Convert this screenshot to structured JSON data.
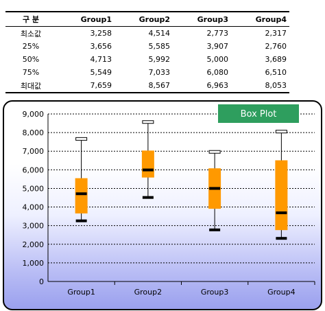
{
  "table": {
    "header": [
      "구 분",
      "Group1",
      "Group2",
      "Group3",
      "Group4"
    ],
    "rows": [
      {
        "label": "최소값",
        "values": [
          "3,258",
          "4,514",
          "2,773",
          "2,317"
        ]
      },
      {
        "label": "25%",
        "values": [
          "3,656",
          "5,585",
          "3,907",
          "2,760"
        ]
      },
      {
        "label": "50%",
        "values": [
          "4,713",
          "5,992",
          "5,000",
          "3,689"
        ]
      },
      {
        "label": "75%",
        "values": [
          "5,549",
          "7,033",
          "6,080",
          "6,510"
        ]
      },
      {
        "label": "최대값",
        "values": [
          "7,659",
          "8,567",
          "6,963",
          "8,053"
        ]
      }
    ]
  },
  "chart_data": {
    "type": "box",
    "title": "Box Plot",
    "categories": [
      "Group1",
      "Group2",
      "Group3",
      "Group4"
    ],
    "min": [
      3258,
      4514,
      2773,
      2317
    ],
    "q1": [
      3656,
      5585,
      3907,
      2760
    ],
    "median": [
      4713,
      5992,
      5000,
      3689
    ],
    "q3": [
      5549,
      7033,
      6080,
      6510
    ],
    "max": [
      7659,
      8567,
      6963,
      8053
    ],
    "ylim": [
      0,
      9000
    ],
    "ytick_step": 1000,
    "ytick_labels": [
      "0",
      "1,000",
      "2,000",
      "3,000",
      "4,000",
      "5,000",
      "6,000",
      "7,000",
      "8,000",
      "9,000"
    ],
    "grid": "horizontal dashed",
    "colors": {
      "box": "#ff9900",
      "median": "#000000",
      "title_bg": "#2e9e5e",
      "grid": "#000000"
    }
  }
}
